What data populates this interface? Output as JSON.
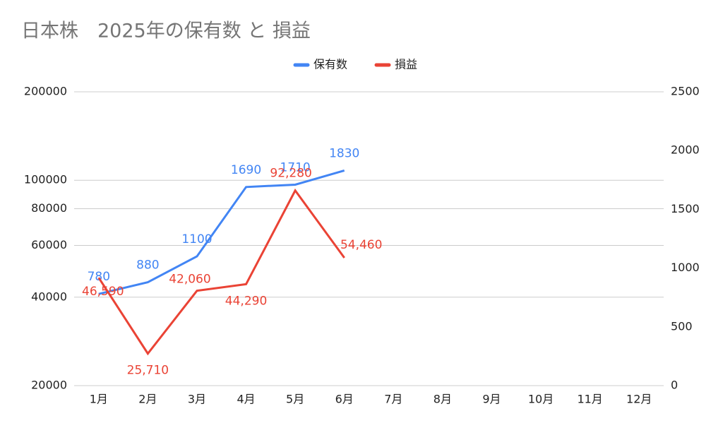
{
  "chart_data": {
    "type": "line",
    "title": "日本株　2025年の保有数 と 損益",
    "categories": [
      "1月",
      "2月",
      "3月",
      "4月",
      "5月",
      "6月",
      "7月",
      "8月",
      "9月",
      "10月",
      "11月",
      "12月"
    ],
    "series": [
      {
        "name": "保有数",
        "color": "#4285f4",
        "axis": "y2",
        "values": [
          780,
          880,
          1100,
          1690,
          1710,
          1830,
          null,
          null,
          null,
          null,
          null,
          null
        ]
      },
      {
        "name": "損益",
        "color": "#ea4335",
        "values": [
          46590,
          25710,
          42060,
          44290,
          92280,
          54460,
          null,
          null,
          null,
          null,
          null,
          null
        ],
        "value_labels": [
          "46,590",
          "25,710",
          "42,060",
          "44,290",
          "92,280",
          "54,460",
          null,
          null,
          null,
          null,
          null,
          null
        ]
      }
    ],
    "ylim": [
      20000,
      200000
    ],
    "yticks": [
      20000,
      40000,
      60000,
      80000,
      100000,
      200000
    ],
    "yscale": "log",
    "y2lim": [
      0,
      2500
    ],
    "y2ticks": [
      0,
      500,
      1000,
      1500,
      2000,
      2500
    ],
    "grid": true,
    "legend": "top"
  }
}
